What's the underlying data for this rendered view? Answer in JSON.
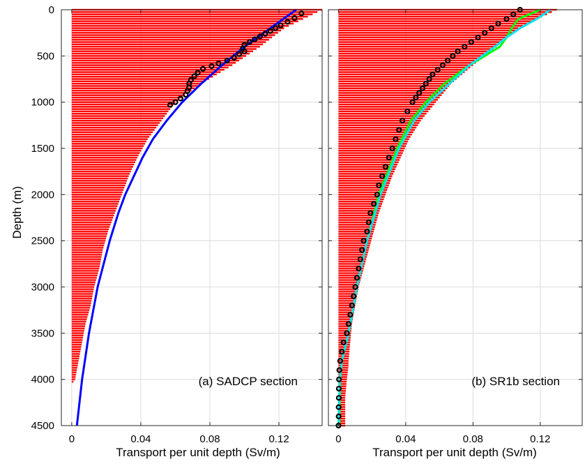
{
  "figure": {
    "y_axis_label": "Depth (m)",
    "x_axis_label": "Transport per unit depth (Sv/m)"
  },
  "chart_data": [
    {
      "type": "bar",
      "panel": "a",
      "annotation": "(a) SADCP section",
      "xlabel": "Transport per unit depth (Sv/m)",
      "ylabel": "Depth (m)",
      "xlim": [
        -0.006,
        0.145
      ],
      "ylim": [
        4500,
        0
      ],
      "y_reversed": true,
      "xticks": [
        "0",
        "0.04",
        "0.08",
        "0.12"
      ],
      "xtick_values": [
        0,
        0.04,
        0.08,
        0.12
      ],
      "yticks": [
        "0",
        "500",
        "1000",
        "1500",
        "2000",
        "2500",
        "3000",
        "3500",
        "4000",
        "4500"
      ],
      "ytick_values": [
        0,
        500,
        1000,
        1500,
        2000,
        2500,
        3000,
        3500,
        4000,
        4500
      ],
      "grid": true,
      "bars": {
        "color": "#ff0000",
        "orientation": "horizontal",
        "depth": [
          0,
          200,
          400,
          600,
          800,
          1000,
          1200,
          1400,
          1600,
          1800,
          2000,
          2200,
          2400,
          2600,
          2800,
          3000,
          3200,
          3400,
          3600,
          3800,
          4000,
          4050,
          4300
        ],
        "value": [
          0.145,
          0.123,
          0.109,
          0.093,
          0.075,
          0.06,
          0.052,
          0.044,
          0.038,
          0.033,
          0.029,
          0.025,
          0.021,
          0.018,
          0.016,
          0.013,
          0.011,
          0.008,
          0.006,
          0.004,
          0.002,
          0.0,
          0.0
        ]
      },
      "series": [
        {
          "style": "line",
          "color": "#0000ff",
          "depth": [
            0,
            200,
            400,
            600,
            800,
            1000,
            1200,
            1400,
            1600,
            1800,
            2000,
            2200,
            2500,
            3000,
            3500,
            4000,
            4500
          ],
          "value": [
            0.13,
            0.115,
            0.1,
            0.087,
            0.075,
            0.064,
            0.055,
            0.047,
            0.041,
            0.036,
            0.031,
            0.027,
            0.022,
            0.015,
            0.01,
            0.006,
            0.003
          ]
        },
        {
          "style": "markers",
          "color": "#000000",
          "depth": [
            40,
            90,
            130,
            170,
            200,
            230,
            260,
            290,
            320,
            350,
            380,
            420,
            450,
            480,
            520,
            550,
            580,
            610,
            640,
            680,
            720,
            760,
            800,
            840,
            880,
            920,
            960,
            1000,
            1030
          ],
          "value": [
            0.133,
            0.129,
            0.125,
            0.121,
            0.118,
            0.115,
            0.112,
            0.109,
            0.106,
            0.103,
            0.1,
            0.099,
            0.1,
            0.097,
            0.094,
            0.09,
            0.085,
            0.081,
            0.076,
            0.073,
            0.071,
            0.069,
            0.068,
            0.068,
            0.067,
            0.066,
            0.063,
            0.06,
            0.057
          ]
        }
      ]
    },
    {
      "type": "bar",
      "panel": "b",
      "annotation": "(b) SR1b section",
      "xlabel": "Transport per unit depth (Sv/m)",
      "xlim": [
        -0.006,
        0.145
      ],
      "ylim": [
        4500,
        0
      ],
      "y_reversed": true,
      "xticks": [
        "0",
        "0.04",
        "0.08",
        "0.12"
      ],
      "xtick_values": [
        0,
        0.04,
        0.08,
        0.12
      ],
      "grid": true,
      "bars": {
        "color": "#ff0000",
        "orientation": "horizontal",
        "depth": [
          0,
          100,
          200,
          400,
          600,
          800,
          1000,
          1200,
          1400,
          1600,
          1800,
          2000,
          2200,
          2400,
          2600,
          2800,
          3000,
          3200,
          3400,
          3600,
          3800,
          3850,
          4000,
          4200,
          4500
        ],
        "value": [
          0.13,
          0.118,
          0.107,
          0.094,
          0.08,
          0.067,
          0.058,
          0.049,
          0.042,
          0.037,
          0.032,
          0.028,
          0.024,
          0.021,
          0.018,
          0.015,
          0.012,
          0.01,
          0.008,
          0.007,
          0.006,
          0.006,
          0.005,
          0.004,
          0.004
        ]
      },
      "series": [
        {
          "style": "line",
          "color": "#00ff00",
          "depth": [
            0,
            100,
            200,
            300,
            400,
            600,
            800,
            1000,
            1200,
            1500,
            2000,
            2500,
            3000,
            3500,
            3800,
            4000,
            4500
          ],
          "value": [
            0.12,
            0.107,
            0.103,
            0.1,
            0.096,
            0.078,
            0.063,
            0.052,
            0.043,
            0.035,
            0.024,
            0.017,
            0.011,
            0.006,
            0.002,
            0.001,
            0.0005
          ]
        },
        {
          "style": "line",
          "color": "#00e5ee",
          "depth": [
            0,
            100,
            200,
            300,
            400,
            600,
            800,
            1000,
            1200,
            1500,
            2000,
            2500,
            3000,
            3500,
            3800,
            4000,
            4500
          ],
          "value": [
            0.126,
            0.118,
            0.108,
            0.1,
            0.093,
            0.078,
            0.066,
            0.054,
            0.045,
            0.036,
            0.025,
            0.017,
            0.011,
            0.006,
            0.002,
            0.0008,
            0.0
          ]
        },
        {
          "style": "markers",
          "color": "#000000",
          "depth": [
            0,
            50,
            100,
            150,
            200,
            250,
            300,
            350,
            400,
            450,
            500,
            550,
            600,
            650,
            700,
            750,
            800,
            850,
            900,
            950,
            1000,
            1100,
            1200,
            1300,
            1400,
            1500,
            1600,
            1700,
            1800,
            1900,
            2000,
            2100,
            2200,
            2300,
            2400,
            2500,
            2600,
            2700,
            2800,
            2900,
            3000,
            3100,
            3200,
            3300,
            3400,
            3500,
            3600,
            3700,
            3800,
            3900,
            4000,
            4100,
            4200,
            4300,
            4400,
            4500
          ],
          "value": [
            0.108,
            0.104,
            0.1,
            0.095,
            0.091,
            0.087,
            0.083,
            0.079,
            0.075,
            0.071,
            0.068,
            0.065,
            0.062,
            0.059,
            0.056,
            0.054,
            0.052,
            0.05,
            0.048,
            0.046,
            0.044,
            0.041,
            0.038,
            0.036,
            0.034,
            0.032,
            0.03,
            0.028,
            0.026,
            0.024,
            0.023,
            0.021,
            0.019,
            0.018,
            0.017,
            0.015,
            0.014,
            0.013,
            0.012,
            0.011,
            0.01,
            0.009,
            0.008,
            0.007,
            0.006,
            0.005,
            0.003,
            0.002,
            0.001,
            0.0005,
            0.0003,
            0.0002,
            0.0002,
            0.0001,
            0.0001,
            0.0
          ]
        }
      ]
    }
  ]
}
